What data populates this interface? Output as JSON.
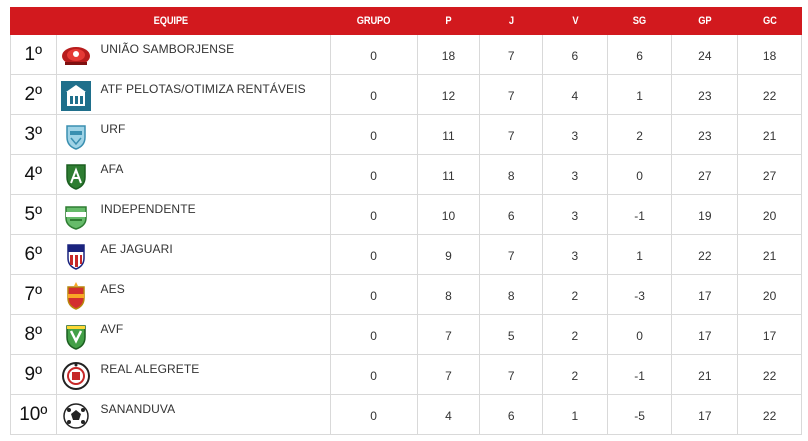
{
  "columns": [
    "EQUIPE",
    "GRUPO",
    "P",
    "J",
    "V",
    "SG",
    "GP",
    "GC"
  ],
  "colors": {
    "header_bg": "#d2191e",
    "header_text": "#ffffff",
    "border": "#d9d9d9"
  },
  "rows": [
    {
      "pos": "1º",
      "team": "UNIÃO SAMBORJENSE",
      "logo": "uniao-samborjense-crest-icon",
      "grupo": "0",
      "p": "18",
      "j": "7",
      "v": "6",
      "sg": "6",
      "gp": "24",
      "gc": "18"
    },
    {
      "pos": "2º",
      "team": "ATF PELOTAS/OTIMIZA RENTÁVEIS",
      "logo": "atf-pelotas-crest-icon",
      "grupo": "0",
      "p": "12",
      "j": "7",
      "v": "4",
      "sg": "1",
      "gp": "23",
      "gc": "22"
    },
    {
      "pos": "3º",
      "team": "URF",
      "logo": "urf-crest-icon",
      "grupo": "0",
      "p": "11",
      "j": "7",
      "v": "3",
      "sg": "2",
      "gp": "23",
      "gc": "21"
    },
    {
      "pos": "4º",
      "team": "AFA",
      "logo": "afa-crest-icon",
      "grupo": "0",
      "p": "11",
      "j": "8",
      "v": "3",
      "sg": "0",
      "gp": "27",
      "gc": "27"
    },
    {
      "pos": "5º",
      "team": "INDEPENDENTE",
      "logo": "independente-crest-icon",
      "grupo": "0",
      "p": "10",
      "j": "6",
      "v": "3",
      "sg": "-1",
      "gp": "19",
      "gc": "20"
    },
    {
      "pos": "6º",
      "team": "AE JAGUARI",
      "logo": "ae-jaguari-crest-icon",
      "grupo": "0",
      "p": "9",
      "j": "7",
      "v": "3",
      "sg": "1",
      "gp": "22",
      "gc": "21"
    },
    {
      "pos": "7º",
      "team": "AES",
      "logo": "aes-crest-icon",
      "grupo": "0",
      "p": "8",
      "j": "8",
      "v": "2",
      "sg": "-3",
      "gp": "17",
      "gc": "20"
    },
    {
      "pos": "8º",
      "team": "AVF",
      "logo": "avf-crest-icon",
      "grupo": "0",
      "p": "7",
      "j": "5",
      "v": "2",
      "sg": "0",
      "gp": "17",
      "gc": "17"
    },
    {
      "pos": "9º",
      "team": "REAL ALEGRETE",
      "logo": "real-alegrete-crest-icon",
      "grupo": "0",
      "p": "7",
      "j": "7",
      "v": "2",
      "sg": "-1",
      "gp": "21",
      "gc": "22"
    },
    {
      "pos": "10º",
      "team": "SANANDUVA",
      "logo": "sananduva-crest-icon",
      "grupo": "0",
      "p": "4",
      "j": "6",
      "v": "1",
      "sg": "-5",
      "gp": "17",
      "gc": "22"
    }
  ]
}
